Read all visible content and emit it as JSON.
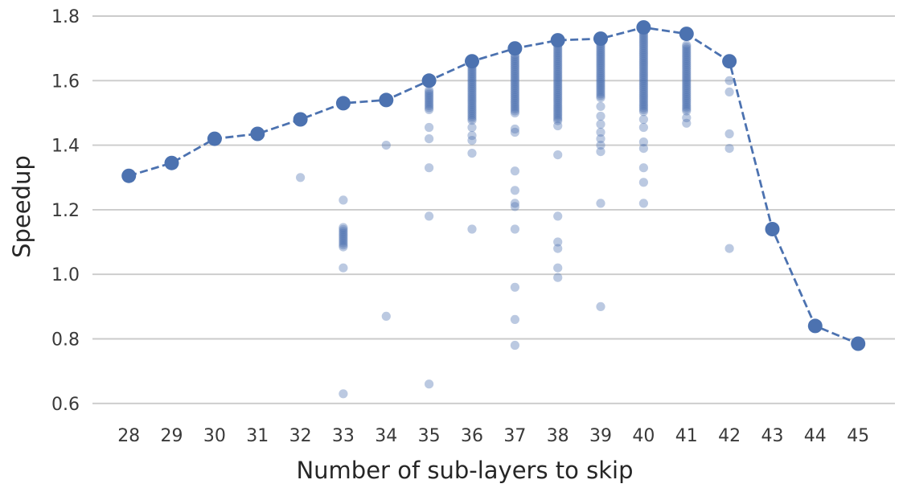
{
  "figure": {
    "background": "#ffffff"
  },
  "chart_data": {
    "type": "scatter",
    "title": "",
    "xlabel": "Number of sub-layers to skip",
    "ylabel": "Speedup",
    "x_ticks": [
      28,
      29,
      30,
      31,
      32,
      33,
      34,
      35,
      36,
      37,
      38,
      39,
      40,
      41,
      42,
      43,
      44,
      45
    ],
    "y_ticks": [
      0.6,
      0.8,
      1.0,
      1.2,
      1.4,
      1.6,
      1.8
    ],
    "y_tick_labels": [
      "0.6",
      "0.8",
      "1.0",
      "1.2",
      "1.4",
      "1.6",
      "1.8"
    ],
    "xlim": [
      27.2,
      45.9
    ],
    "ylim": [
      0.55,
      1.85
    ],
    "grid": true,
    "legend_position": "none",
    "colors": {
      "series": "#4C72B0",
      "grid": "#cbcbcb",
      "text": "#262626",
      "tick_text": "#3a3a3a"
    },
    "max_line": {
      "style": "dashed line with large solid markers (max speedup per skip count)",
      "x": [
        28,
        29,
        30,
        31,
        32,
        33,
        34,
        35,
        36,
        37,
        38,
        39,
        40,
        41,
        42,
        43,
        44,
        45
      ],
      "y": [
        1.305,
        1.345,
        1.42,
        1.435,
        1.48,
        1.53,
        1.54,
        1.6,
        1.66,
        1.7,
        1.725,
        1.73,
        1.765,
        1.745,
        1.66,
        1.14,
        0.84,
        0.785
      ]
    },
    "scatter_columns": [
      {
        "x": 32,
        "points": [
          1.3
        ]
      },
      {
        "x": 33,
        "streak": [
          1.145,
          1.08
        ],
        "points": [
          1.23,
          1.02,
          0.63
        ]
      },
      {
        "x": 34,
        "points": [
          1.4,
          0.87
        ]
      },
      {
        "x": 35,
        "streak": [
          1.57,
          1.505
        ],
        "points": [
          1.455,
          1.42,
          1.33,
          1.18,
          0.66
        ]
      },
      {
        "x": 36,
        "streak": [
          1.645,
          1.475
        ],
        "points": [
          1.455,
          1.43,
          1.415,
          1.375,
          1.14
        ]
      },
      {
        "x": 37,
        "streak": [
          1.68,
          1.5
        ],
        "points": [
          1.45,
          1.44,
          1.32,
          1.26,
          1.22,
          1.21,
          1.14,
          0.96,
          0.86,
          0.78
        ]
      },
      {
        "x": 38,
        "streak": [
          1.71,
          1.475
        ],
        "points": [
          1.46,
          1.37,
          1.18,
          1.1,
          1.08,
          1.02,
          0.99
        ]
      },
      {
        "x": 39,
        "streak": [
          1.715,
          1.545
        ],
        "points": [
          1.52,
          1.49,
          1.465,
          1.44,
          1.42,
          1.4,
          1.38,
          1.22,
          0.9
        ]
      },
      {
        "x": 40,
        "streak": [
          1.75,
          1.5
        ],
        "points": [
          1.48,
          1.455,
          1.41,
          1.39,
          1.33,
          1.285,
          1.22
        ]
      },
      {
        "x": 41,
        "streak": [
          1.71,
          1.505
        ],
        "points": [
          1.485,
          1.468
        ]
      },
      {
        "x": 42,
        "points": [
          1.6,
          1.565,
          1.435,
          1.39,
          1.08
        ]
      },
      {
        "x": 43,
        "points": []
      },
      {
        "x": 44,
        "points": []
      },
      {
        "x": 45,
        "points": []
      }
    ],
    "scatter_style": {
      "point_opacity": 0.38,
      "streak_note": "streak = dense vertical band of many overlapping translucent points from streak[0] down to streak[1]"
    }
  }
}
